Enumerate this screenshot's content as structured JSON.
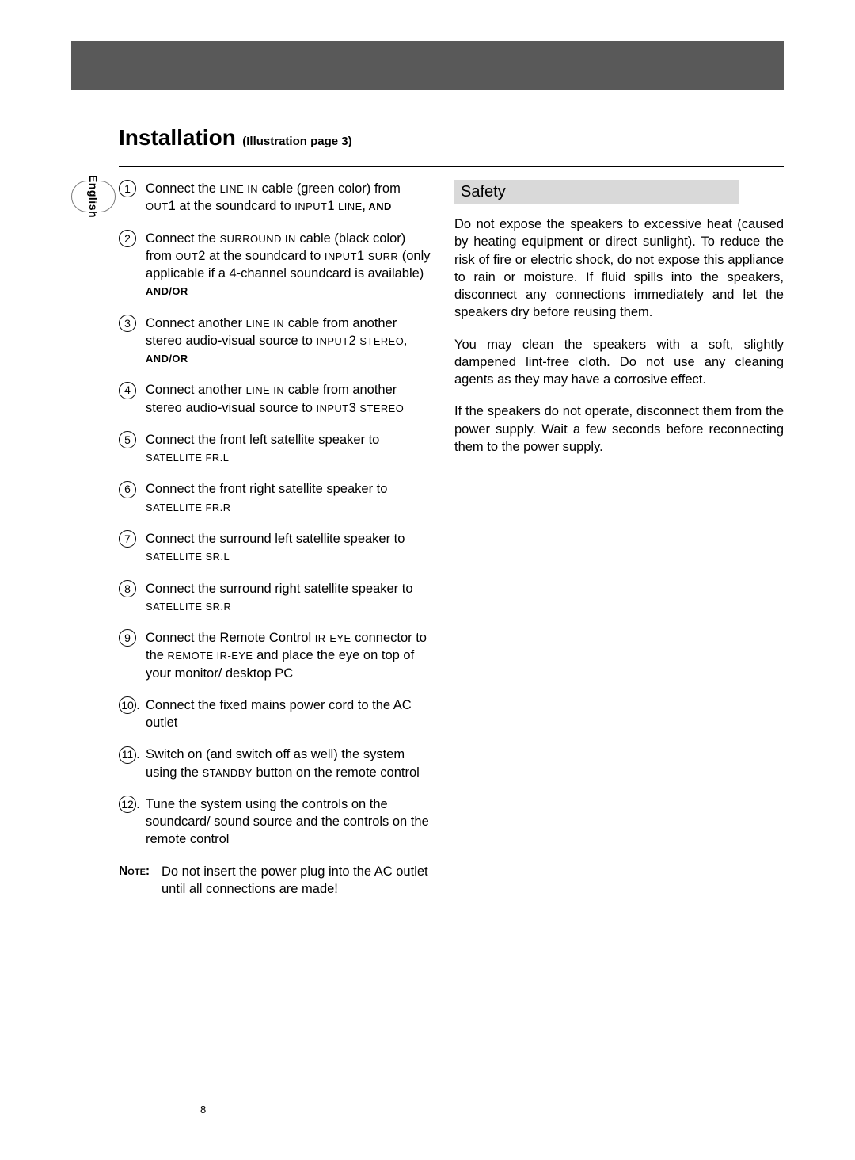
{
  "colors": {
    "topbar": "#595959",
    "safety_bg": "#d9d9d9",
    "text": "#000000",
    "page_bg": "#ffffff",
    "tab_border": "#7a7a7a"
  },
  "lang_tab": "English",
  "title": {
    "main": "Installation",
    "sub": "(Illustration page 3)"
  },
  "steps": [
    {
      "n": "1",
      "body_html": "Connect the <span class='caps'>LINE IN</span> cable (green color) from <span class='caps'>OUT</span>1 at the soundcard to <span class='caps'>INPUT</span>1 <span class='caps'>LINE</span><span class='tag'>, AND</span>"
    },
    {
      "n": "2",
      "body_html": "Connect the <span class='caps'>SURROUND IN</span> cable (black color) from <span class='caps'>OUT</span>2 at the soundcard to <span class='caps'>INPUT</span>1 <span class='caps'>SURR</span> (only applicable if a 4-channel soundcard is available)<span class='tag'> AND/OR</span>"
    },
    {
      "n": "3",
      "body_html": "Connect another <span class='caps'>LINE IN</span> cable from another stereo audio-visual source to <span class='caps'>INPUT</span>2 <span class='caps'>STEREO</span><span class='tag'>, AND/OR</span>"
    },
    {
      "n": "4",
      "body_html": "Connect another <span class='caps'>LINE IN</span> cable from another stereo audio-visual source to <span class='caps'>INPUT</span>3 <span class='caps'>STEREO</span>"
    },
    {
      "n": "5",
      "body_html": "Connect the front left satellite speaker to <span class='caps'>SATELLITE FR.L</span>"
    },
    {
      "n": "6",
      "body_html": "Connect the front right satellite speaker to <span class='caps'>SATELLITE FR.R</span>"
    },
    {
      "n": "7",
      "body_html": "Connect the surround left satellite speaker to <span class='caps'>SATELLITE SR.L</span>"
    },
    {
      "n": "8",
      "body_html": "Connect the surround right satellite speaker to <span class='caps'>SATELLITE SR.R</span>"
    },
    {
      "n": "9",
      "body_html": "Connect the Remote Control <span class='caps'>IR-EYE</span> connector to the <span class='caps'>REMOTE IR-EYE</span> and place the eye on top of your monitor/ desktop PC"
    },
    {
      "n": "10",
      "suffix": ".",
      "body_html": "Connect the fixed mains power cord to the AC outlet"
    },
    {
      "n": "11",
      "suffix": ".",
      "body_html": "Switch on (and switch off as well) the system using the <span class='caps'>STANDBY</span> button on the remote control"
    },
    {
      "n": "12",
      "suffix": ".",
      "body_html": "Tune the system using the controls on the soundcard/ sound source and the controls on the remote control"
    }
  ],
  "note": {
    "label": "Note:",
    "text": "Do not insert the power plug into the AC outlet until all connections are made!"
  },
  "safety": {
    "heading": "Safety",
    "paras": [
      "Do not expose the speakers to excessive heat (caused by heating equipment or direct sunlight). To reduce the risk of fire or electric shock, do not expose this appliance to rain or moisture. If fluid spills into the speakers, disconnect any connections immediately and let the speakers dry before reusing them.",
      "You may clean the speakers with a soft, slightly dampened lint-free cloth. Do not use any cleaning agents as they may have a corrosive effect.",
      "If the speakers do not operate, disconnect them from the power supply. Wait a few seconds before reconnecting them to the power supply."
    ]
  },
  "page_number": "8"
}
